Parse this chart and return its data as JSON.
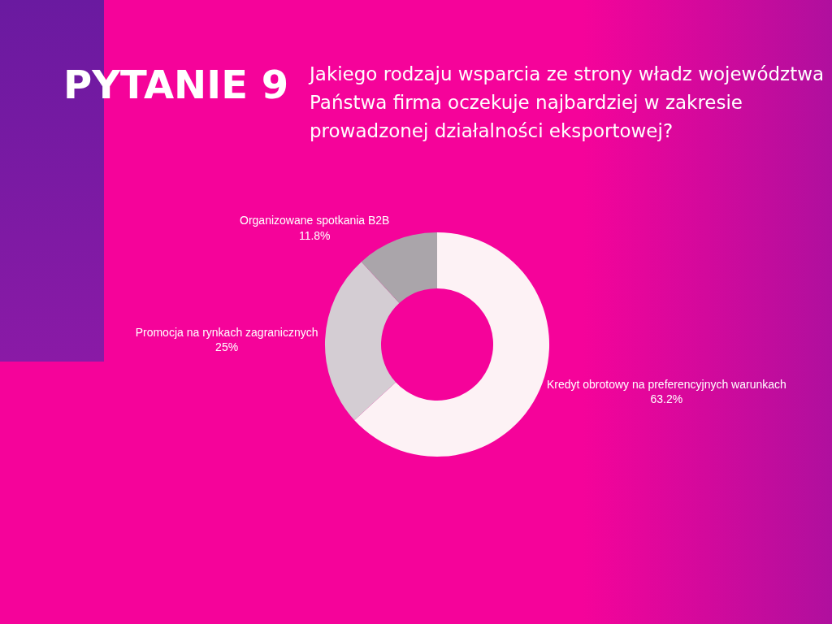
{
  "chart_data": {
    "type": "donut",
    "title": "PYTANIE 9",
    "subtitle": "Jakiego rodzaju wsparcia ze strony władz województwa Państwa firma oczekuje najbardziej w zakresie prowadzonej działalności eksportowej?",
    "categories": [
      "Kredyt obrotowy na preferencyjnych warunkach",
      "Promocja na rynkach zagranicznych",
      "Organizowane spotkania B2B"
    ],
    "values": [
      63.2,
      25,
      11.8
    ],
    "value_labels": [
      "63.2%",
      "25%",
      "11.8%"
    ],
    "colors": [
      "#fdf2f5",
      "#d4cdd3",
      "#aaa5aa"
    ],
    "legend": false
  }
}
